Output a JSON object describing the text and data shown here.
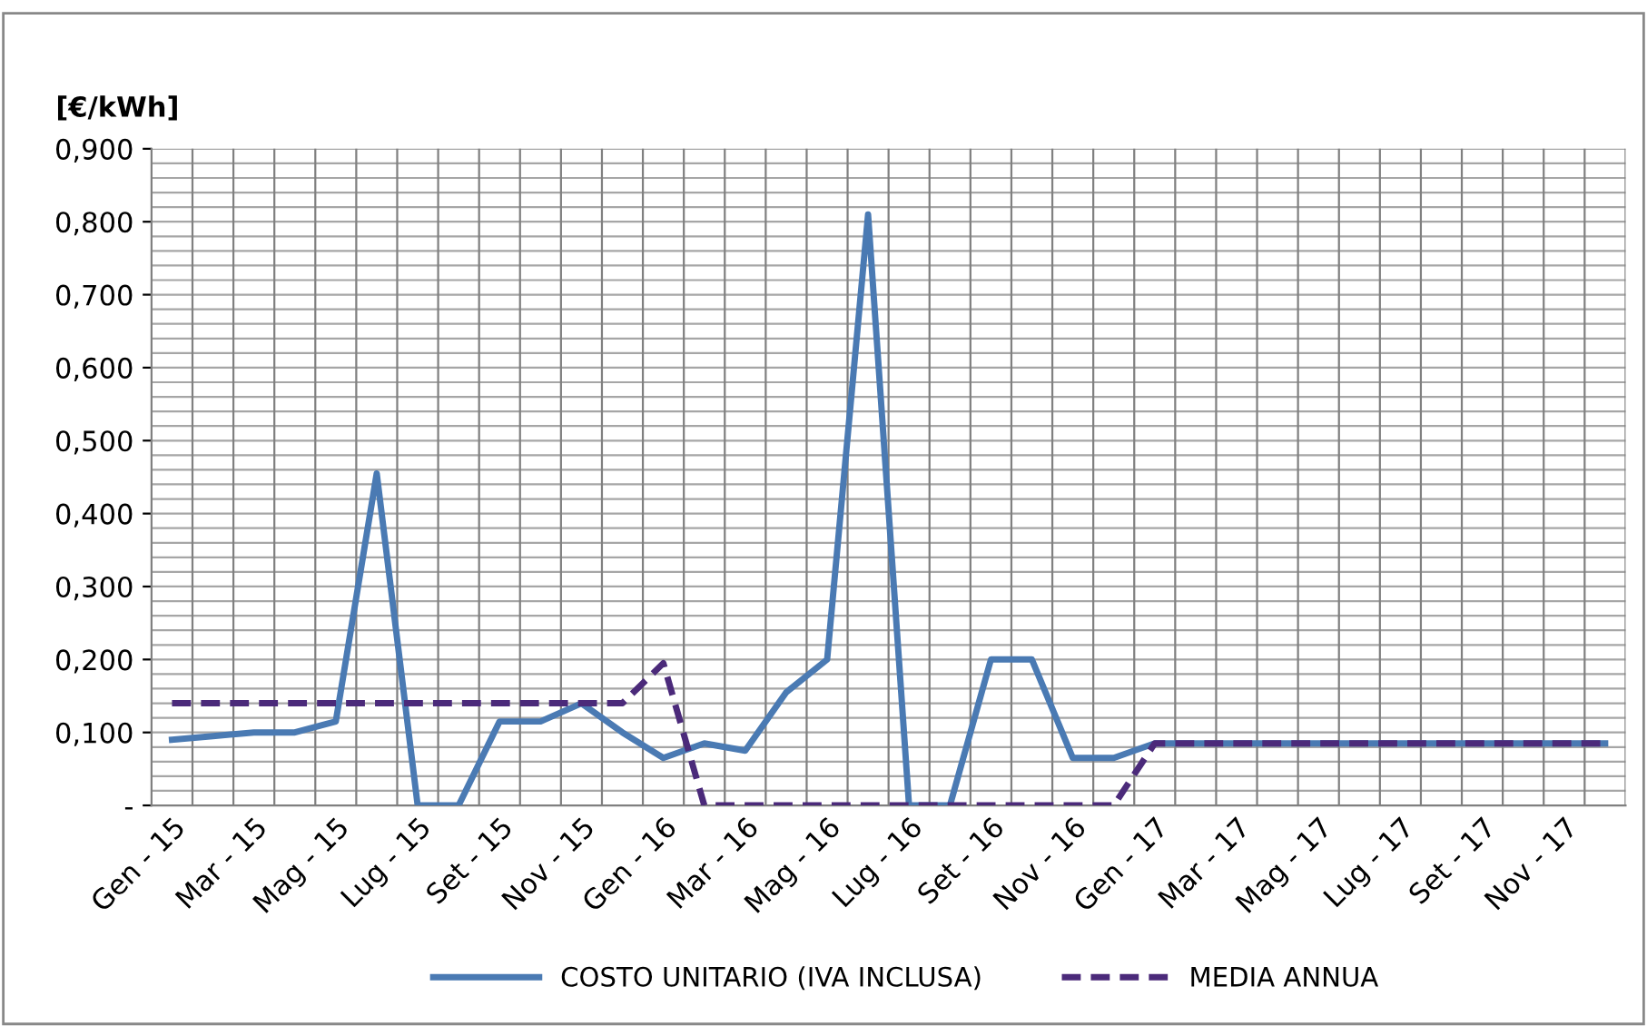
{
  "chart_data": {
    "type": "line",
    "ylabel": "[€/kWh]",
    "categories": [
      "Gen - 15",
      null,
      "Mar - 15",
      null,
      "Mag - 15",
      null,
      "Lug - 15",
      null,
      "Set - 15",
      null,
      "Nov - 15",
      null,
      "Gen - 16",
      null,
      "Mar - 16",
      null,
      "Mag - 16",
      null,
      "Lug - 16",
      null,
      "Set - 16",
      null,
      "Nov - 16",
      null,
      "Gen - 17",
      null,
      "Mar - 17",
      null,
      "Mag - 17",
      null,
      "Lug - 17",
      null,
      "Set - 17",
      null,
      "Nov - 17",
      null
    ],
    "series": [
      {
        "name": "COSTO UNITARIO (IVA INCLUSA)",
        "color": "#4a7ab3",
        "line_style": "solid",
        "values": [
          0.09,
          0.095,
          0.1,
          0.1,
          0.115,
          0.455,
          0,
          0,
          0.115,
          0.115,
          0.14,
          0.1,
          0.065,
          0.085,
          0.075,
          0.155,
          0.2,
          0.81,
          0,
          0,
          0.2,
          0.2,
          0.065,
          0.065,
          0.085,
          0.085,
          0.085,
          0.085,
          0.085,
          0.085,
          0.085,
          0.085,
          0.085,
          0.085,
          0.085,
          0.085
        ]
      },
      {
        "name": "MEDIA ANNUA",
        "color": "#4b2a7a",
        "line_style": "dashed",
        "values": [
          0.14,
          0.14,
          0.14,
          0.14,
          0.14,
          0.14,
          0.14,
          0.14,
          0.14,
          0.14,
          0.14,
          0.14,
          0.195,
          0,
          0,
          0,
          0,
          0,
          0,
          0,
          0,
          0,
          0,
          0,
          0.085,
          0.085,
          0.085,
          0.085,
          0.085,
          0.085,
          0.085,
          0.085,
          0.085,
          0.085,
          0.085,
          0.085
        ]
      }
    ],
    "ylim": [
      0,
      0.9
    ],
    "yticks": [
      {
        "value": 0,
        "label": "-"
      },
      {
        "value": 0.1,
        "label": "0,100"
      },
      {
        "value": 0.2,
        "label": "0,200"
      },
      {
        "value": 0.3,
        "label": "0,300"
      },
      {
        "value": 0.4,
        "label": "0,400"
      },
      {
        "value": 0.5,
        "label": "0,500"
      },
      {
        "value": 0.6,
        "label": "0,600"
      },
      {
        "value": 0.7,
        "label": "0,700"
      },
      {
        "value": 0.8,
        "label": "0,800"
      },
      {
        "value": 0.9,
        "label": "0,900"
      }
    ],
    "grid": true,
    "legend": "bottom",
    "marker": "none"
  }
}
